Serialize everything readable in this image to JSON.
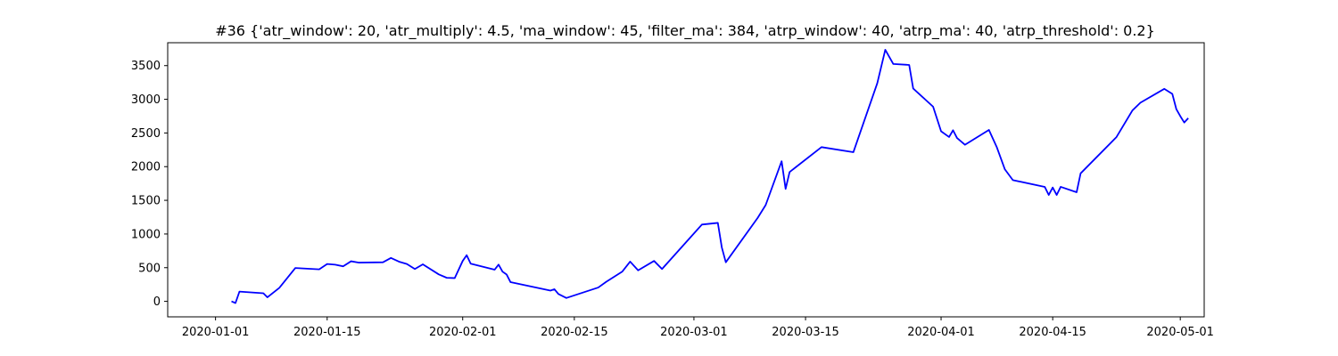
{
  "chart_data": {
    "type": "line",
    "title": "#36 {'atr_window': 20, 'atr_multiply': 4.5, 'ma_window': 45, 'filter_ma': 384, 'atrp_window': 40, 'atrp_ma': 40, 'atrp_threshold': 0.2}",
    "xlabel": "",
    "ylabel": "",
    "xlim": [
      "2019-12-26",
      "2020-05-04"
    ],
    "ylim": [
      -230,
      3840
    ],
    "x_ticks": [
      "2020-01-01",
      "2020-01-15",
      "2020-02-01",
      "2020-02-15",
      "2020-03-01",
      "2020-03-15",
      "2020-04-01",
      "2020-04-15",
      "2020-05-01"
    ],
    "y_ticks": [
      0,
      500,
      1000,
      1500,
      2000,
      2500,
      3000,
      3500
    ],
    "grid": false,
    "legend": "none",
    "series": [
      {
        "color": "#0000ff",
        "points": [
          [
            "2020-01-03",
            0
          ],
          [
            "2020-01-03T12:00",
            -25
          ],
          [
            "2020-01-04",
            145
          ],
          [
            "2020-01-07",
            120
          ],
          [
            "2020-01-07T12:00",
            60
          ],
          [
            "2020-01-09",
            200
          ],
          [
            "2020-01-11",
            495
          ],
          [
            "2020-01-14",
            475
          ],
          [
            "2020-01-15",
            555
          ],
          [
            "2020-01-16",
            545
          ],
          [
            "2020-01-17",
            520
          ],
          [
            "2020-01-18",
            595
          ],
          [
            "2020-01-19",
            575
          ],
          [
            "2020-01-22",
            580
          ],
          [
            "2020-01-23",
            645
          ],
          [
            "2020-01-24",
            590
          ],
          [
            "2020-01-25",
            555
          ],
          [
            "2020-01-26",
            480
          ],
          [
            "2020-01-27",
            550
          ],
          [
            "2020-01-29",
            400
          ],
          [
            "2020-01-30",
            350
          ],
          [
            "2020-01-31",
            345
          ],
          [
            "2020-02-01",
            600
          ],
          [
            "2020-02-01T12:00",
            685
          ],
          [
            "2020-02-02",
            560
          ],
          [
            "2020-02-05",
            470
          ],
          [
            "2020-02-05T12:00",
            545
          ],
          [
            "2020-02-06",
            440
          ],
          [
            "2020-02-06T12:00",
            400
          ],
          [
            "2020-02-07",
            285
          ],
          [
            "2020-02-12",
            160
          ],
          [
            "2020-02-12T12:00",
            180
          ],
          [
            "2020-02-13",
            110
          ],
          [
            "2020-02-14",
            50
          ],
          [
            "2020-02-18",
            205
          ],
          [
            "2020-02-19",
            290
          ],
          [
            "2020-02-21",
            440
          ],
          [
            "2020-02-22",
            590
          ],
          [
            "2020-02-23",
            460
          ],
          [
            "2020-02-25",
            600
          ],
          [
            "2020-02-26",
            480
          ],
          [
            "2020-03-02",
            1140
          ],
          [
            "2020-03-04",
            1165
          ],
          [
            "2020-03-04T12:00",
            800
          ],
          [
            "2020-03-05",
            580
          ],
          [
            "2020-03-09",
            1240
          ],
          [
            "2020-03-10",
            1430
          ],
          [
            "2020-03-12",
            2080
          ],
          [
            "2020-03-12T12:00",
            1670
          ],
          [
            "2020-03-13",
            1920
          ],
          [
            "2020-03-17",
            2290
          ],
          [
            "2020-03-21",
            2215
          ],
          [
            "2020-03-24",
            3240
          ],
          [
            "2020-03-25",
            3735
          ],
          [
            "2020-03-26",
            3525
          ],
          [
            "2020-03-28",
            3510
          ],
          [
            "2020-03-28T12:00",
            3160
          ],
          [
            "2020-03-31",
            2890
          ],
          [
            "2020-04-01",
            2525
          ],
          [
            "2020-04-02",
            2440
          ],
          [
            "2020-04-02T12:00",
            2540
          ],
          [
            "2020-04-03",
            2425
          ],
          [
            "2020-04-04",
            2325
          ],
          [
            "2020-04-07",
            2545
          ],
          [
            "2020-04-08",
            2285
          ],
          [
            "2020-04-09",
            1960
          ],
          [
            "2020-04-10",
            1800
          ],
          [
            "2020-04-14",
            1700
          ],
          [
            "2020-04-14T12:00",
            1580
          ],
          [
            "2020-04-15",
            1690
          ],
          [
            "2020-04-15T12:00",
            1580
          ],
          [
            "2020-04-16",
            1700
          ],
          [
            "2020-04-18",
            1620
          ],
          [
            "2020-04-18T12:00",
            1900
          ],
          [
            "2020-04-23",
            2440
          ],
          [
            "2020-04-25",
            2835
          ],
          [
            "2020-04-26",
            2950
          ],
          [
            "2020-04-29",
            3155
          ],
          [
            "2020-04-30",
            3080
          ],
          [
            "2020-04-30T12:00",
            2855
          ],
          [
            "2020-05-01",
            2750
          ],
          [
            "2020-05-01T12:00",
            2655
          ],
          [
            "2020-05-02",
            2720
          ]
        ]
      }
    ]
  }
}
